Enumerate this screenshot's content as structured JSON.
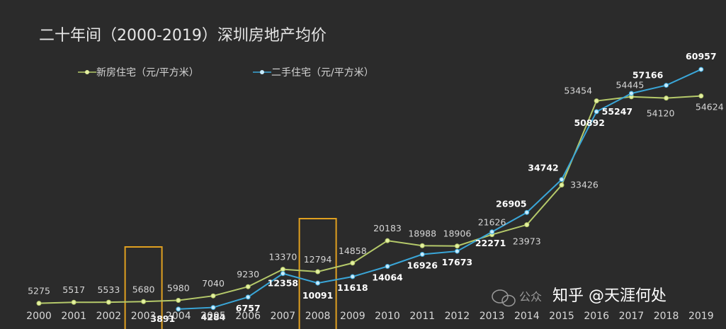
{
  "chart_data": {
    "type": "line",
    "title": "二十年间（2000-2019）深圳房地产均价",
    "categories": [
      "2000",
      "2001",
      "2002",
      "2003",
      "2004",
      "2005",
      "2006",
      "2007",
      "2008",
      "2009",
      "2010",
      "2011",
      "2012",
      "2013",
      "2014",
      "2015",
      "2016",
      "2017",
      "2018",
      "2019"
    ],
    "series": [
      {
        "name": "新房住宅（元/平方米）",
        "color": "#b5c96a",
        "values": [
          5275,
          5517,
          5533,
          5680,
          5980,
          7040,
          9230,
          13370,
          12794,
          14858,
          20183,
          18988,
          18906,
          21626,
          23973,
          33426,
          53454,
          54445,
          54120,
          54624
        ]
      },
      {
        "name": "二手住宅（元/平方米）",
        "color": "#3aa6d8",
        "values": [
          null,
          null,
          null,
          null,
          3891,
          4284,
          6757,
          12358,
          10091,
          11618,
          14064,
          16926,
          17673,
          22271,
          26905,
          34742,
          50892,
          55247,
          57166,
          60957
        ]
      }
    ],
    "highlight_years": [
      "2003",
      "2008"
    ],
    "highlight_color": "#e0a020",
    "ylim": [
      0,
      64000
    ],
    "grid": false,
    "legend_position": "top-left"
  },
  "watermark": {
    "prefix": "公众",
    "text": "知乎 @天涯何处"
  }
}
